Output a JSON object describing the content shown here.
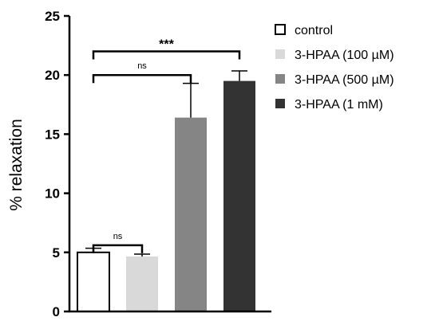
{
  "chart_data": {
    "type": "bar",
    "title": "",
    "xlabel": "",
    "ylabel": "% relaxation",
    "ylim": [
      0,
      25
    ],
    "yticks": [
      "0",
      "5",
      "10",
      "15",
      "20",
      "25"
    ],
    "categories": [
      "control",
      "3-HPAA (100 µM)",
      "3-HPAA (500 µM)",
      "3-HPAA (1 mM)"
    ],
    "values": [
      5.0,
      4.65,
      16.4,
      19.5
    ],
    "errors": [
      0.35,
      0.2,
      2.9,
      0.85
    ],
    "colors": [
      "#ffffff",
      "#d9d9d9",
      "#858585",
      "#333333"
    ],
    "edge_color": "#000000",
    "grid": false,
    "legend": "top-right",
    "significance": [
      {
        "from": 0,
        "to": 1,
        "label": "ns",
        "level": 5.6
      },
      {
        "from": 0,
        "to": 2,
        "label": "ns",
        "level": 20.0
      },
      {
        "from": 0,
        "to": 3,
        "label": "***",
        "level": 22.0
      }
    ]
  }
}
